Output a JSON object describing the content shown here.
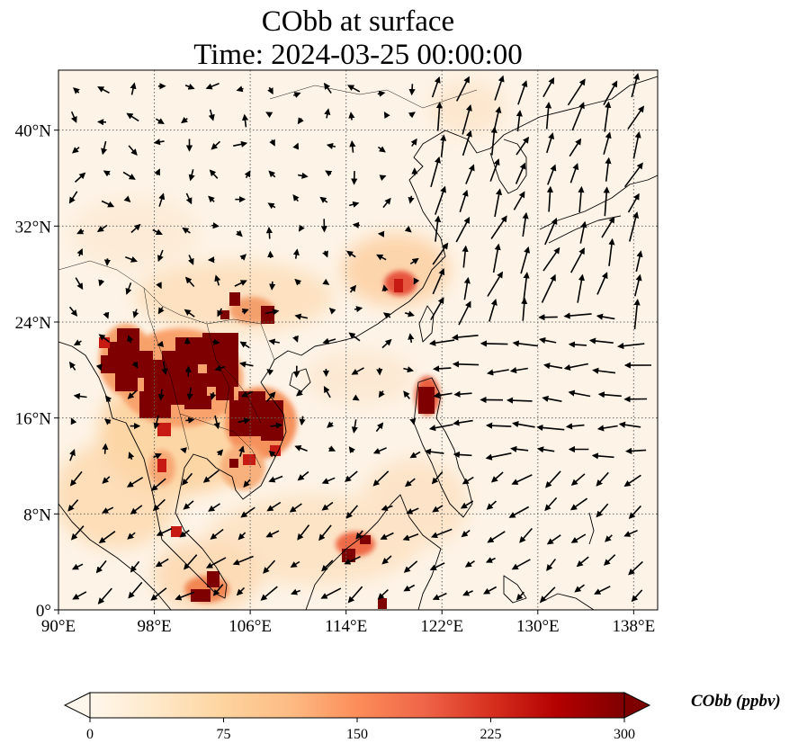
{
  "title": {
    "line1": "CObb at surface",
    "line2": "Time: 2024-03-25 00:00:00"
  },
  "map": {
    "projection": "PlateCarree",
    "lon_range": [
      90,
      140
    ],
    "lat_range": [
      0,
      45
    ],
    "lon_ticks": [
      {
        "value": 90,
        "label": "90°E"
      },
      {
        "value": 98,
        "label": "98°E"
      },
      {
        "value": 106,
        "label": "106°E"
      },
      {
        "value": 114,
        "label": "114°E"
      },
      {
        "value": 122,
        "label": "122°E"
      },
      {
        "value": 130,
        "label": "130°E"
      },
      {
        "value": 138,
        "label": "138°E"
      }
    ],
    "lat_ticks": [
      {
        "value": 0,
        "label": "0°"
      },
      {
        "value": 8,
        "label": "8°N"
      },
      {
        "value": 16,
        "label": "16°N"
      },
      {
        "value": 24,
        "label": "24°N"
      },
      {
        "value": 32,
        "label": "32°N"
      },
      {
        "value": 40,
        "label": "40°N"
      }
    ],
    "gridlines": "dotted",
    "coastlines": true,
    "borders": true,
    "field": "CObb surface concentration",
    "wind_vectors": true
  },
  "colorbar": {
    "label": "CObb (ppbv)",
    "colormap": "OrRd",
    "min": 0,
    "max": 300,
    "extend": "both",
    "ticks": [
      {
        "value": 0,
        "label": "0"
      },
      {
        "value": 75,
        "label": "75"
      },
      {
        "value": 150,
        "label": "150"
      },
      {
        "value": 225,
        "label": "225"
      },
      {
        "value": 300,
        "label": "300"
      }
    ],
    "colors": [
      "#fff7ec",
      "#fee8c8",
      "#fdd49e",
      "#fdbb84",
      "#fc8d59",
      "#ef6548",
      "#d7301f",
      "#b30000",
      "#7f0000"
    ]
  }
}
